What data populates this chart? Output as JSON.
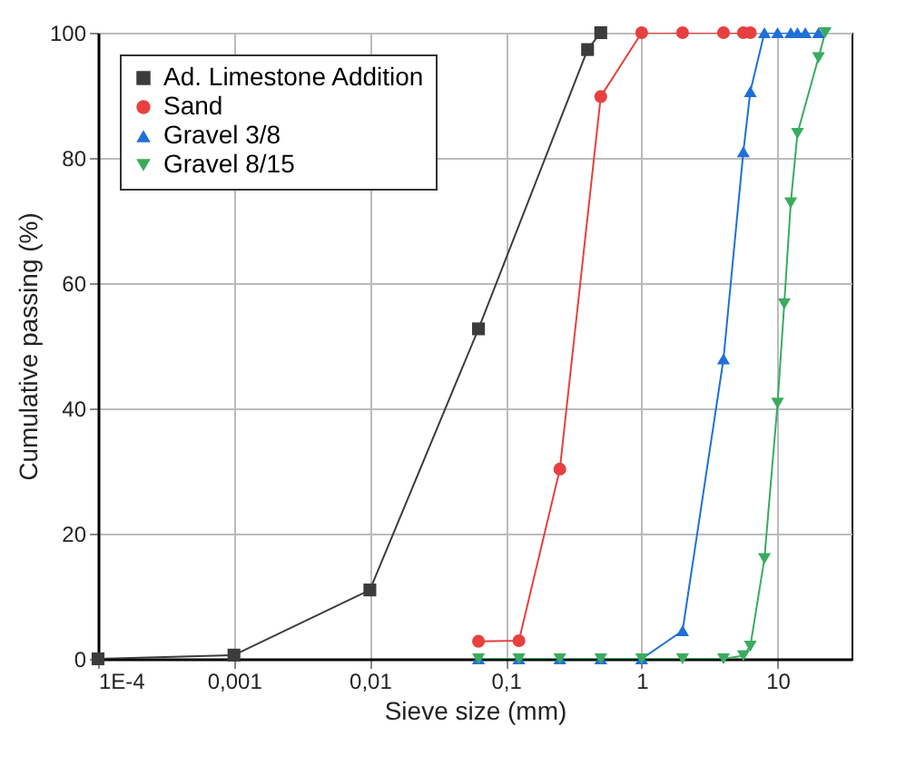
{
  "chart_data": {
    "type": "line",
    "xlabel": "Sieve size (mm)",
    "ylabel": "Cumulative passing (%)",
    "log": "x",
    "grid": true,
    "legend": "top left",
    "xlim": [
      0.0001,
      35
    ],
    "ylim": [
      0,
      100
    ],
    "xticks": [
      {
        "value": 0.0001,
        "label": "1E-4"
      },
      {
        "value": 0.001,
        "label": "0,001"
      },
      {
        "value": 0.01,
        "label": "0,01"
      },
      {
        "value": 0.1,
        "label": "0,1"
      },
      1,
      10
    ],
    "yticks": [
      0,
      20,
      40,
      60,
      80,
      100
    ],
    "series": [
      {
        "name": "Ad. Limestone Addition",
        "color": "#3c3c3c",
        "marker": "square",
        "x": [
          0.0001,
          0.001,
          0.01,
          0.063,
          0.4,
          0.5
        ],
        "values": [
          0,
          0.6,
          11,
          52.7,
          97.3,
          100
        ]
      },
      {
        "name": "Sand",
        "color": "#e8403f",
        "marker": "circle",
        "x": [
          0.063,
          0.125,
          0.25,
          0.5,
          1,
          2,
          4,
          5.6,
          6.3
        ],
        "values": [
          2.8,
          2.9,
          30.3,
          89.8,
          100,
          100,
          100,
          100,
          100
        ]
      },
      {
        "name": "Gravel 3/8",
        "color": "#1f6fd8",
        "marker": "triangle",
        "x": [
          0.063,
          0.125,
          0.25,
          0.5,
          1,
          2,
          4,
          5.6,
          6.3,
          8,
          10,
          12.5,
          14,
          16,
          20
        ],
        "values": [
          0,
          0,
          0,
          0,
          0,
          4.5,
          47.9,
          81,
          90.6,
          100,
          100,
          100,
          100,
          100,
          100
        ]
      },
      {
        "name": "Gravel 8/15",
        "color": "#3aab5e",
        "marker": "triangle-down",
        "x": [
          0.063,
          0.125,
          0.25,
          0.5,
          1,
          2,
          4,
          5.6,
          6.3,
          8,
          10,
          11.2,
          12.5,
          14,
          20,
          22.4
        ],
        "values": [
          0,
          0,
          0,
          0,
          0,
          0,
          0,
          0.5,
          2,
          16,
          40.8,
          56.7,
          72.8,
          83.9,
          96,
          100
        ]
      }
    ]
  }
}
